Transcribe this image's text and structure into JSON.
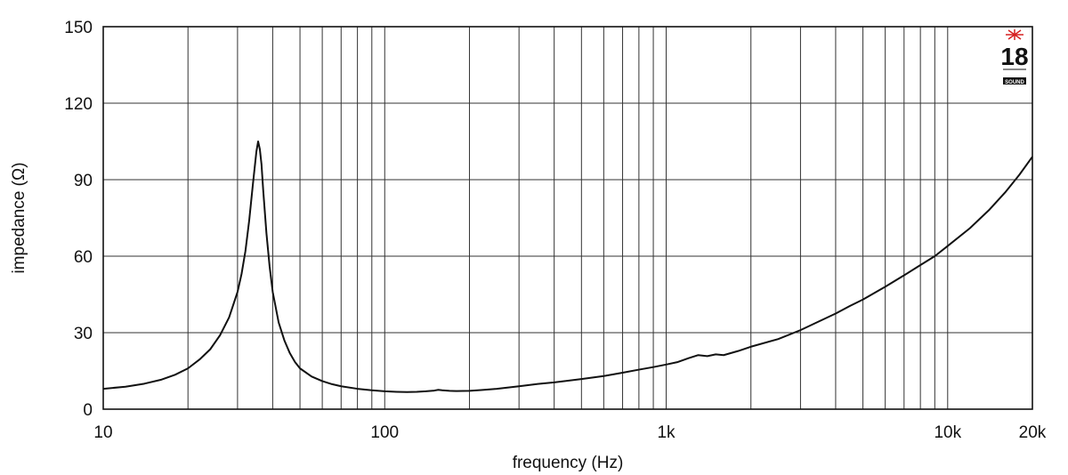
{
  "chart_data": {
    "type": "line",
    "title": "",
    "xlabel": "frequency (Hz)",
    "ylabel": "impedance (Ω)",
    "x_scale": "log",
    "xlim": [
      10,
      20000
    ],
    "ylim": [
      0,
      150
    ],
    "grid": true,
    "x_ticks": [
      {
        "value": 10,
        "label": "10"
      },
      {
        "value": 100,
        "label": "100"
      },
      {
        "value": 1000,
        "label": "1k"
      },
      {
        "value": 10000,
        "label": "10k"
      },
      {
        "value": 20000,
        "label": "20k"
      }
    ],
    "y_ticks": [
      {
        "value": 0,
        "label": "0"
      },
      {
        "value": 30,
        "label": "30"
      },
      {
        "value": 60,
        "label": "60"
      },
      {
        "value": 90,
        "label": "90"
      },
      {
        "value": 120,
        "label": "120"
      },
      {
        "value": 150,
        "label": "150"
      }
    ],
    "x_gridlines": [
      10,
      20,
      30,
      40,
      50,
      60,
      70,
      80,
      90,
      100,
      200,
      300,
      400,
      500,
      600,
      700,
      800,
      900,
      1000,
      2000,
      3000,
      4000,
      5000,
      6000,
      7000,
      8000,
      9000,
      10000,
      20000
    ],
    "y_gridlines": [
      0,
      30,
      60,
      90,
      120,
      150
    ],
    "line_color": "#111111",
    "series": [
      {
        "x": [
          10,
          12,
          14,
          16,
          18,
          20,
          22,
          24,
          26,
          28,
          30,
          31,
          32,
          33,
          34,
          35,
          35.5,
          36,
          36.5,
          37,
          38,
          39,
          40,
          42,
          44,
          46,
          48,
          50,
          55,
          60,
          65,
          70,
          80,
          90,
          100,
          110,
          120,
          130,
          140,
          150,
          155,
          160,
          170,
          180,
          200,
          220,
          250,
          300,
          350,
          400,
          500,
          600,
          700,
          800,
          900,
          1000,
          1100,
          1200,
          1300,
          1400,
          1500,
          1600,
          1800,
          2000,
          2500,
          3000,
          3500,
          4000,
          4500,
          5000,
          6000,
          7000,
          8000,
          9000,
          10000,
          12000,
          14000,
          16000,
          18000,
          20000
        ],
        "y": [
          8,
          8.8,
          10,
          11.5,
          13.5,
          16,
          19.5,
          23.5,
          29,
          36,
          46,
          53,
          62,
          74,
          88,
          101,
          105,
          102,
          96,
          86,
          69,
          56,
          46,
          34,
          27,
          22,
          18.5,
          16,
          12.8,
          11,
          9.8,
          9,
          8,
          7.4,
          7,
          6.8,
          6.7,
          6.8,
          7,
          7.3,
          7.6,
          7.4,
          7.2,
          7.1,
          7.2,
          7.5,
          8,
          9,
          9.9,
          10.5,
          11.8,
          13,
          14.3,
          15.5,
          16.5,
          17.5,
          18.5,
          20,
          21.2,
          20.8,
          21.5,
          21.2,
          22.8,
          24.5,
          27.5,
          31,
          34.5,
          37.5,
          40.5,
          43,
          48,
          52.5,
          56.5,
          60,
          64,
          71,
          78,
          85,
          92,
          99
        ]
      }
    ]
  },
  "logo": {
    "number": "18",
    "text": "SOUND",
    "star_color": "#d62020"
  }
}
